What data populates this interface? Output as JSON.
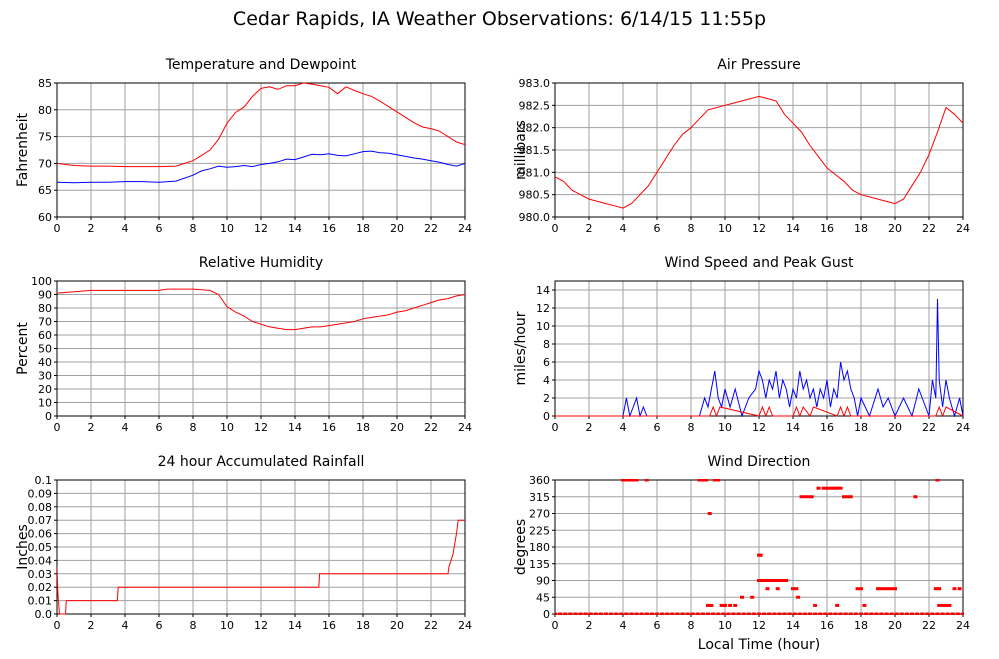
{
  "title": "Cedar Rapids, IA Weather Observations: 6/14/15 11:55p",
  "colors": {
    "primary": "#ff0000",
    "secondary": "#0000ff",
    "grid": "#a0a0a0"
  },
  "chart_data": [
    {
      "id": "temp",
      "type": "line",
      "title": "Temperature and Dewpoint",
      "xlabel": "",
      "ylabel": "Fahrenheit",
      "xlim": [
        0,
        24
      ],
      "ylim": [
        60,
        85
      ],
      "xticks": [
        0,
        2,
        4,
        6,
        8,
        10,
        12,
        14,
        16,
        18,
        20,
        22,
        24
      ],
      "yticks": [
        60,
        65,
        70,
        75,
        80,
        85
      ],
      "grid": true,
      "series": [
        {
          "color": "#ff0000",
          "x": [
            0,
            1,
            2,
            3,
            4,
            5,
            6,
            7,
            8,
            8.5,
            9,
            9.5,
            10,
            10.5,
            11,
            11.5,
            12,
            12.5,
            13,
            13.5,
            14,
            14.5,
            15,
            15.5,
            16,
            16.5,
            17,
            17.5,
            18,
            18.5,
            19,
            19.5,
            20,
            20.5,
            21,
            21.5,
            22,
            22.5,
            23,
            23.5,
            24
          ],
          "y": [
            70,
            69.6,
            69.5,
            69.5,
            69.4,
            69.4,
            69.4,
            69.5,
            70.5,
            71.5,
            72.5,
            74.5,
            77.5,
            79.5,
            80.5,
            82.5,
            84,
            84.3,
            83.8,
            84.5,
            84.5,
            85,
            84.8,
            84.5,
            84.2,
            83,
            84.3,
            83.6,
            83,
            82.5,
            81.6,
            80.6,
            79.6,
            78.6,
            77.6,
            76.8,
            76.5,
            76,
            75,
            74,
            73.5
          ]
        },
        {
          "color": "#0000ff",
          "x": [
            0,
            1,
            2,
            3,
            4,
            5,
            6,
            7,
            8,
            8.5,
            9,
            9.5,
            10,
            10.5,
            11,
            11.5,
            12,
            12.5,
            13,
            13.5,
            14,
            14.5,
            15,
            15.5,
            16,
            16.5,
            17,
            17.5,
            18,
            18.5,
            19,
            19.5,
            20,
            20.5,
            21,
            21.5,
            22,
            22.5,
            23,
            23.5,
            24
          ],
          "y": [
            66.5,
            66.4,
            66.5,
            66.5,
            66.6,
            66.6,
            66.5,
            66.7,
            67.8,
            68.6,
            69,
            69.5,
            69.3,
            69.4,
            69.6,
            69.4,
            69.8,
            70,
            70.3,
            70.8,
            70.7,
            71.2,
            71.7,
            71.6,
            71.8,
            71.5,
            71.4,
            71.8,
            72.2,
            72.3,
            72,
            71.9,
            71.6,
            71.3,
            71,
            70.8,
            70.5,
            70.2,
            69.8,
            69.5,
            70
          ]
        }
      ]
    },
    {
      "id": "pressure",
      "type": "line",
      "title": "Air Pressure",
      "xlabel": "",
      "ylabel": "millibars",
      "xlim": [
        0,
        24
      ],
      "ylim": [
        980.0,
        983.0
      ],
      "xticks": [
        0,
        2,
        4,
        6,
        8,
        10,
        12,
        14,
        16,
        18,
        20,
        22,
        24
      ],
      "yticks": [
        980.0,
        980.5,
        981.0,
        981.5,
        982.0,
        982.5,
        983.0
      ],
      "grid": true,
      "series": [
        {
          "color": "#ff0000",
          "x": [
            0,
            0.5,
            1,
            1.5,
            2,
            2.5,
            3,
            3.5,
            4,
            4.5,
            5,
            5.5,
            6,
            6.5,
            7,
            7.5,
            8,
            8.5,
            9,
            9.5,
            10,
            10.5,
            11,
            11.5,
            12,
            12.5,
            13,
            13.5,
            14,
            14.5,
            15,
            15.5,
            16,
            16.5,
            17,
            17.5,
            18,
            18.5,
            19,
            19.5,
            20,
            20.5,
            21,
            21.5,
            22,
            22.5,
            23,
            23.5,
            24
          ],
          "y": [
            980.9,
            980.8,
            980.6,
            980.5,
            980.4,
            980.35,
            980.3,
            980.25,
            980.2,
            980.3,
            980.5,
            980.7,
            981.0,
            981.3,
            981.6,
            981.85,
            982.0,
            982.2,
            982.4,
            982.45,
            982.5,
            982.55,
            982.6,
            982.65,
            982.7,
            982.65,
            982.6,
            982.3,
            982.1,
            981.9,
            981.6,
            981.35,
            981.1,
            980.95,
            980.8,
            980.6,
            980.5,
            980.45,
            980.4,
            980.35,
            980.3,
            980.4,
            980.7,
            981.0,
            981.4,
            981.9,
            982.45,
            982.3,
            982.1
          ]
        }
      ]
    },
    {
      "id": "humidity",
      "type": "line",
      "title": "Relative Humidity",
      "xlabel": "",
      "ylabel": "Percent",
      "xlim": [
        0,
        24
      ],
      "ylim": [
        0,
        100
      ],
      "xticks": [
        0,
        2,
        4,
        6,
        8,
        10,
        12,
        14,
        16,
        18,
        20,
        22,
        24
      ],
      "yticks": [
        0,
        10,
        20,
        30,
        40,
        50,
        60,
        70,
        80,
        90,
        100
      ],
      "grid": true,
      "series": [
        {
          "color": "#ff0000",
          "x": [
            0,
            1,
            2,
            3,
            4,
            5,
            6,
            6.5,
            7,
            8,
            9,
            9.5,
            10,
            10.5,
            11,
            11.5,
            12,
            12.5,
            13,
            13.5,
            14,
            14.5,
            15,
            15.5,
            16,
            16.5,
            17,
            17.5,
            18,
            18.5,
            19,
            19.5,
            20,
            20.5,
            21,
            21.5,
            22,
            22.5,
            23,
            23.5,
            24
          ],
          "y": [
            91,
            92,
            93,
            93,
            93,
            93,
            93,
            94,
            94,
            94,
            93,
            90,
            81,
            77,
            74,
            70,
            68,
            66,
            65,
            64,
            64,
            65,
            66,
            66,
            67,
            68,
            69,
            70,
            72,
            73,
            74,
            75,
            77,
            78,
            80,
            82,
            84,
            86,
            87,
            89,
            90
          ]
        }
      ]
    },
    {
      "id": "wind",
      "type": "line",
      "title": "Wind Speed and Peak Gust",
      "xlabel": "",
      "ylabel": "miles/hour",
      "xlim": [
        0,
        24
      ],
      "ylim": [
        0,
        15
      ],
      "xticks": [
        0,
        2,
        4,
        6,
        8,
        10,
        12,
        14,
        16,
        18,
        20,
        22,
        24
      ],
      "yticks": [
        0,
        2,
        4,
        6,
        8,
        10,
        12,
        14
      ],
      "grid": true,
      "series": [
        {
          "color": "#0000ff",
          "x": [
            0,
            4,
            4.2,
            4.4,
            4.6,
            4.8,
            5,
            5.2,
            5.4,
            8.5,
            8.8,
            9,
            9.2,
            9.4,
            9.6,
            9.8,
            10,
            10.3,
            10.6,
            11,
            11.4,
            11.8,
            12,
            12.2,
            12.4,
            12.6,
            12.8,
            13,
            13.2,
            13.4,
            13.6,
            13.8,
            14,
            14.2,
            14.4,
            14.6,
            14.8,
            15,
            15.2,
            15.4,
            15.6,
            15.8,
            16,
            16.2,
            16.4,
            16.6,
            16.8,
            17,
            17.2,
            17.4,
            17.6,
            17.8,
            18,
            18.5,
            19,
            19.3,
            19.6,
            20,
            20.5,
            21,
            21.4,
            21.8,
            22,
            22.2,
            22.4,
            22.5,
            22.6,
            22.8,
            23,
            23.2,
            23.5,
            23.8,
            24
          ],
          "y": [
            0,
            0,
            2,
            0,
            1,
            2,
            0,
            1,
            0,
            0,
            2,
            1,
            3,
            5,
            2,
            1,
            3,
            1,
            3,
            0,
            2,
            3,
            5,
            4,
            2,
            4,
            3,
            5,
            2,
            4,
            3,
            1,
            3,
            2,
            5,
            3,
            4,
            2,
            3,
            1,
            3,
            2,
            4,
            1,
            3,
            2,
            6,
            4,
            5,
            3,
            2,
            0,
            2,
            0,
            3,
            1,
            2,
            0,
            2,
            0,
            3,
            1,
            0,
            4,
            2,
            13,
            4,
            1,
            4,
            2,
            0,
            2,
            0
          ]
        },
        {
          "color": "#ff0000",
          "x": [
            0,
            9.1,
            9.3,
            9.5,
            9.7,
            12,
            12.2,
            12.4,
            12.6,
            12.8,
            14,
            14.2,
            14.4,
            14.6,
            15,
            15.2,
            16.6,
            16.8,
            17,
            17.2,
            17.4,
            22.4,
            22.6,
            22.8,
            23,
            24
          ],
          "y": [
            0,
            0,
            1,
            0,
            1,
            0,
            1,
            0,
            1,
            0,
            0,
            1,
            0,
            1,
            0,
            1,
            0,
            1,
            0,
            1,
            0,
            0,
            1,
            0,
            1,
            0
          ]
        }
      ]
    },
    {
      "id": "rain",
      "type": "line",
      "title": "24 hour Accumulated Rainfall",
      "xlabel": "",
      "ylabel": "Inches",
      "xlim": [
        0,
        24
      ],
      "ylim": [
        0,
        0.1
      ],
      "xticks": [
        0,
        2,
        4,
        6,
        8,
        10,
        12,
        14,
        16,
        18,
        20,
        22,
        24
      ],
      "yticks": [
        0.0,
        0.01,
        0.02,
        0.03,
        0.04,
        0.05,
        0.06,
        0.07,
        0.08,
        0.09,
        0.1
      ],
      "grid": true,
      "series": [
        {
          "color": "#ff0000",
          "x": [
            0,
            0.05,
            0.15,
            0.25,
            0.5,
            0.55,
            0.6,
            3.55,
            3.6,
            15.4,
            15.45,
            23.0,
            23.05,
            23.3,
            23.5,
            23.6,
            24
          ],
          "y": [
            0.035,
            0.015,
            0,
            0,
            0,
            0.01,
            0.01,
            0.01,
            0.02,
            0.02,
            0.03,
            0.03,
            0.035,
            0.045,
            0.06,
            0.07,
            0.07
          ]
        }
      ]
    },
    {
      "id": "direction",
      "type": "scatter",
      "title": "Wind Direction",
      "xlabel": "Local Time (hour)",
      "ylabel": "degrees",
      "xlim": [
        0,
        24
      ],
      "ylim": [
        0,
        360
      ],
      "xticks": [
        0,
        2,
        4,
        6,
        8,
        10,
        12,
        14,
        16,
        18,
        20,
        22,
        24
      ],
      "yticks": [
        0,
        45,
        90,
        135,
        180,
        225,
        270,
        315,
        360
      ],
      "grid": true,
      "series": [
        {
          "color": "#ff0000",
          "x": [
            0,
            0.3,
            0.6,
            0.9,
            1.2,
            1.5,
            1.8,
            2.1,
            2.4,
            2.7,
            3.0,
            3.3,
            3.6,
            3.9,
            4.2,
            4.5,
            4.8,
            5.1,
            5.4,
            5.7,
            6.0,
            6.3,
            6.6,
            6.9,
            7.2,
            7.5,
            7.8,
            8.1,
            8.4,
            8.7,
            9.0,
            9.3,
            9.6,
            9.9,
            10.2,
            10.5,
            10.8,
            11.1,
            11.4,
            11.7,
            12.0,
            12.3,
            12.6,
            12.9,
            13.2,
            13.5,
            13.8,
            14.1,
            14.4,
            14.7,
            15.0,
            15.3,
            15.6,
            15.9,
            16.2,
            16.5,
            16.8,
            17.1,
            17.4,
            17.7,
            18.0,
            18.3,
            18.6,
            18.9,
            19.2,
            19.5,
            19.8,
            20.1,
            20.4,
            20.7,
            21.0,
            21.3,
            21.6,
            21.9,
            22.2,
            22.5,
            22.8,
            23.1,
            23.4,
            23.7,
            24,
            4.0,
            4.2,
            4.4,
            4.6,
            4.8,
            5.4,
            8.5,
            8.7,
            8.9,
            9.4,
            9.6,
            14.5,
            14.7,
            14.9,
            15.1,
            15.5,
            15.8,
            16.0,
            16.2,
            16.4,
            16.6,
            16.8,
            17.0,
            17.2,
            17.4,
            12.0,
            12.1,
            12.2,
            12.4,
            12.6,
            12.8,
            13.0,
            13.2,
            13.4,
            13.6,
            14.0,
            14.2,
            17.8,
            18.0,
            19.0,
            19.2,
            19.4,
            19.6,
            19.8,
            20.0,
            22.4,
            22.6,
            23.5,
            23.8,
            9.0,
            9.2,
            11.0,
            11.6,
            9.8,
            10.0,
            10.3,
            10.6,
            22.6,
            22.8,
            23.0,
            23.2,
            12.0,
            12.1,
            9.1,
            22.5,
            21.2,
            12.5,
            13.1,
            14.3,
            15.3,
            16.6,
            18.2
          ],
          "y": [
            0,
            0,
            0,
            0,
            0,
            0,
            0,
            0,
            0,
            0,
            0,
            0,
            0,
            0,
            0,
            0,
            0,
            0,
            0,
            0,
            0,
            0,
            0,
            0,
            0,
            0,
            0,
            0,
            0,
            0,
            0,
            0,
            0,
            0,
            0,
            0,
            0,
            0,
            0,
            0,
            0,
            0,
            0,
            0,
            0,
            0,
            0,
            0,
            0,
            0,
            0,
            0,
            0,
            0,
            0,
            0,
            0,
            0,
            0,
            0,
            0,
            0,
            0,
            0,
            0,
            0,
            0,
            0,
            0,
            0,
            0,
            0,
            0,
            0,
            0,
            0,
            0,
            0,
            0,
            0,
            0,
            360,
            360,
            360,
            360,
            360,
            360,
            360,
            360,
            360,
            360,
            360,
            315,
            315,
            315,
            315,
            338,
            338,
            338,
            338,
            338,
            338,
            338,
            315,
            315,
            315,
            90,
            90,
            90,
            90,
            90,
            90,
            90,
            90,
            90,
            90,
            68,
            68,
            68,
            68,
            68,
            68,
            68,
            68,
            68,
            68,
            68,
            68,
            68,
            68,
            23,
            23,
            45,
            45,
            23,
            23,
            23,
            23,
            23,
            23,
            23,
            23,
            158,
            158,
            270,
            360,
            315,
            68,
            68,
            45,
            23,
            23,
            23
          ]
        }
      ]
    }
  ]
}
